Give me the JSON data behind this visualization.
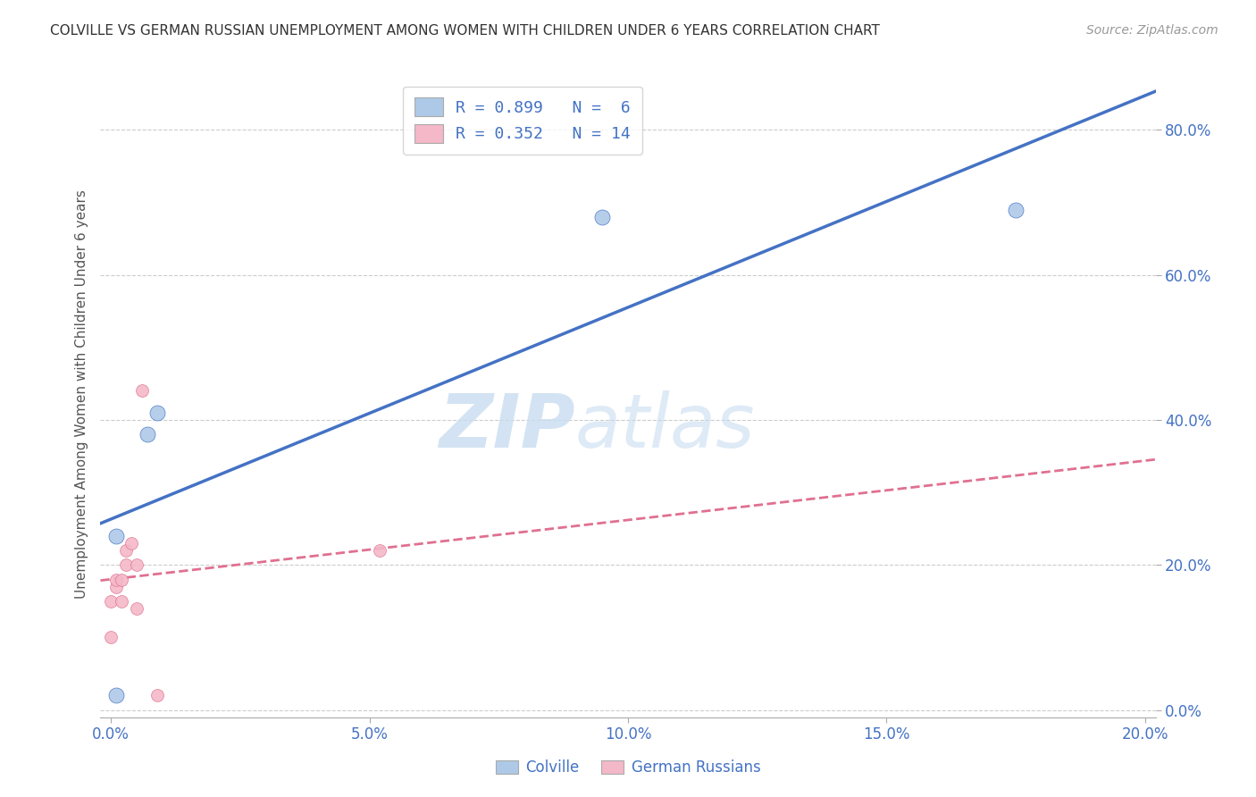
{
  "title": "COLVILLE VS GERMAN RUSSIAN UNEMPLOYMENT AMONG WOMEN WITH CHILDREN UNDER 6 YEARS CORRELATION CHART",
  "source": "Source: ZipAtlas.com",
  "ylabel_label": "Unemployment Among Women with Children Under 6 years",
  "colville_color": "#aec9e8",
  "colville_color_line": "#4472C4",
  "german_color": "#f4b8c8",
  "german_color_line": "#e07090",
  "colville_R": 0.899,
  "colville_N": 6,
  "german_R": 0.352,
  "german_N": 14,
  "watermark_zip": "ZIP",
  "watermark_atlas": "atlas",
  "colville_x": [
    0.001,
    0.001,
    0.007,
    0.009,
    0.095,
    0.175
  ],
  "colville_y": [
    0.02,
    0.24,
    0.38,
    0.41,
    0.68,
    0.69
  ],
  "german_x": [
    0.0,
    0.0,
    0.001,
    0.001,
    0.002,
    0.002,
    0.003,
    0.003,
    0.004,
    0.005,
    0.005,
    0.006,
    0.009,
    0.052
  ],
  "german_y": [
    0.1,
    0.15,
    0.17,
    0.18,
    0.15,
    0.18,
    0.2,
    0.22,
    0.23,
    0.14,
    0.2,
    0.44,
    0.02,
    0.22
  ],
  "xlim": [
    -0.002,
    0.202
  ],
  "ylim": [
    -0.01,
    0.88
  ],
  "xticks": [
    0.0,
    0.05,
    0.1,
    0.15,
    0.2
  ],
  "yticks": [
    0.0,
    0.2,
    0.4,
    0.6,
    0.8
  ],
  "background_color": "#ffffff",
  "grid_color": "#cccccc",
  "title_color": "#333333",
  "axis_color": "#4472C4",
  "colville_size": 150,
  "german_size": 100
}
